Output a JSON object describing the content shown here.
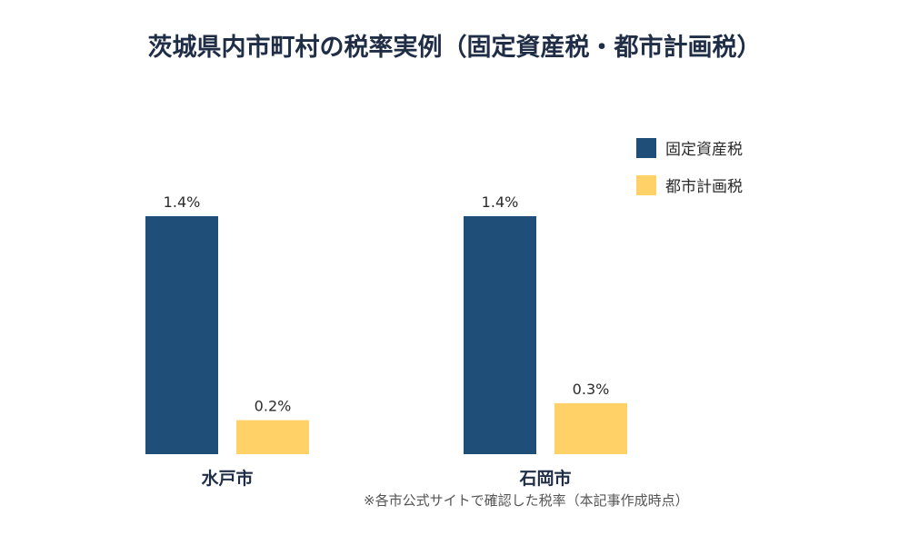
{
  "title": "茨城県内市町村の税率実例（固定資産税・都市計画税）",
  "note": "※各市公式サイトで確認した税率（本記事作成時点）",
  "colors": {
    "fixed_asset": "#1f4e79",
    "city_planning": "#ffd166",
    "text": "#1f2d46"
  },
  "chart_data": {
    "type": "bar",
    "categories": [
      "水戸市",
      "石岡市"
    ],
    "series": [
      {
        "name": "固定資産税",
        "values": [
          1.4,
          1.4
        ],
        "labels": [
          "1.4%",
          "1.4%"
        ]
      },
      {
        "name": "都市計画税",
        "values": [
          0.2,
          0.3
        ],
        "labels": [
          "0.2%",
          "0.3%"
        ]
      }
    ],
    "ylim": [
      0,
      1.4
    ],
    "grid": false,
    "legend_position": "top-right",
    "xlabel": "",
    "ylabel": ""
  }
}
